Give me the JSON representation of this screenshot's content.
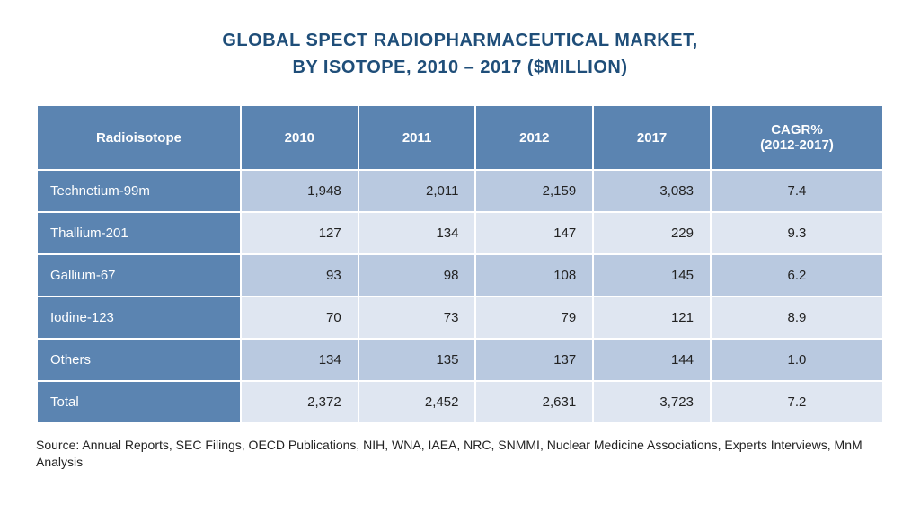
{
  "title_line1": "GLOBAL SPECT RADIOPHARMACEUTICAL MARKET,",
  "title_line2": "BY ISOTOPE, 2010 – 2017 ($MILLION)",
  "colors": {
    "title": "#1f4e79",
    "header_bg": "#5b84b1",
    "rowlabel_bg": "#5b84b1",
    "band_a": "#b9c9e0",
    "band_b": "#dfe6f1",
    "text": "#222222",
    "background": "#ffffff"
  },
  "typography": {
    "title_fontsize": 20,
    "title_weight": "bold",
    "header_fontsize": 15,
    "cell_fontsize": 15,
    "source_fontsize": 14,
    "font_family": "Verdana"
  },
  "table": {
    "headers": [
      "Radioisotope",
      "2010",
      "2011",
      "2012",
      "2017",
      "CAGR% (2012-2017)"
    ],
    "header_cagr_line1": "CAGR%",
    "header_cagr_line2": "(2012-2017)",
    "column_widths_pct": [
      24,
      13,
      13,
      13,
      13,
      20
    ],
    "value_align": "right",
    "cagr_align": "center",
    "label_align": "left",
    "rows": [
      {
        "label": "Technetium-99m",
        "v2010": "1,948",
        "v2011": "2,011",
        "v2012": "2,159",
        "v2017": "3,083",
        "cagr": "7.4",
        "band": "a"
      },
      {
        "label": "Thallium-201",
        "v2010": "127",
        "v2011": "134",
        "v2012": "147",
        "v2017": "229",
        "cagr": "9.3",
        "band": "b"
      },
      {
        "label": "Gallium-67",
        "v2010": "93",
        "v2011": "98",
        "v2012": "108",
        "v2017": "145",
        "cagr": "6.2",
        "band": "a"
      },
      {
        "label": "Iodine-123",
        "v2010": "70",
        "v2011": "73",
        "v2012": "79",
        "v2017": "121",
        "cagr": "8.9",
        "band": "b"
      },
      {
        "label": "Others",
        "v2010": "134",
        "v2011": "135",
        "v2012": "137",
        "v2017": "144",
        "cagr": "1.0",
        "band": "a"
      },
      {
        "label": "Total",
        "v2010": "2,372",
        "v2011": "2,452",
        "v2012": "2,631",
        "v2017": "3,723",
        "cagr": "7.2",
        "band": "b"
      }
    ]
  },
  "source": "Source: Annual Reports, SEC Filings, OECD Publications, NIH, WNA, IAEA, NRC, SNMMI, Nuclear Medicine Associations, Experts Interviews, MnM Analysis"
}
